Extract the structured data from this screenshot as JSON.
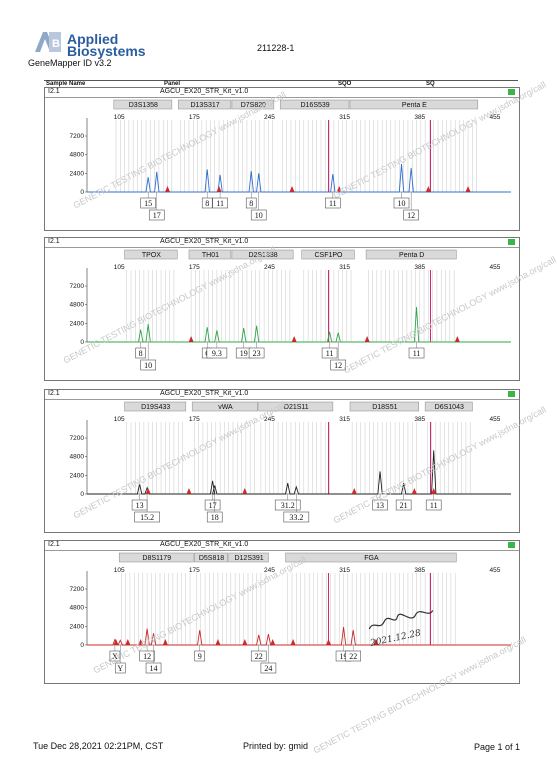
{
  "header": {
    "brand_line1": "Applied",
    "brand_line2": "Biosystems",
    "app_name": "GeneMapper ID v3.2",
    "code": "211228-1",
    "columns": [
      "Sample Name",
      "Panel",
      "SQO",
      "SQ"
    ]
  },
  "footer": {
    "date": "Tue Dec 28,2021 02:21PM, CST",
    "printed_by": "Printed by: gmid",
    "page": "Page 1 of 1"
  },
  "watermark": "GENETIC TESTING BIOTECHNOLOGY  www.jsdna.org/call",
  "signature": "2021.12.28",
  "colors": {
    "blue": "#2f6fcf",
    "green": "#2fa84a",
    "black": "#222222",
    "red": "#cc2a2a",
    "magenta": "#d6246e",
    "bin": "#c9c9c9",
    "locus": "#d9d9d9"
  },
  "chart_data": [
    {
      "type": "line",
      "sample": "I2.1",
      "panel": "AGCU_EX20_STR_Kit_v1.0",
      "dye": "blue",
      "x_ticks": [
        105,
        175,
        245,
        315,
        385,
        455
      ],
      "y_ticks": [
        0,
        2400,
        4800,
        7200
      ],
      "ylim": [
        0,
        9000
      ],
      "loci": [
        {
          "name": "D3S1358",
          "start": 100,
          "end": 155
        },
        {
          "name": "D13S317",
          "start": 160,
          "end": 210
        },
        {
          "name": "D7S820",
          "start": 210,
          "end": 250
        },
        {
          "name": "D16S539",
          "start": 255,
          "end": 320
        },
        {
          "name": "Penta E",
          "start": 320,
          "end": 440
        }
      ],
      "peaks": [
        {
          "x": 132,
          "h": 1900,
          "label": "15",
          "row": 1
        },
        {
          "x": 140,
          "h": 2600,
          "label": "17",
          "row": 2
        },
        {
          "x": 187,
          "h": 2900,
          "label": "8",
          "row": 1
        },
        {
          "x": 199,
          "h": 2200,
          "label": "11",
          "row": 1
        },
        {
          "x": 228,
          "h": 2700,
          "label": "8",
          "row": 1
        },
        {
          "x": 235,
          "h": 2400,
          "label": "10",
          "row": 2
        },
        {
          "x": 304,
          "h": 2300,
          "label": "11",
          "row": 1
        },
        {
          "x": 368,
          "h": 3600,
          "label": "10",
          "row": 1
        },
        {
          "x": 377,
          "h": 3100,
          "label": "12",
          "row": 2
        }
      ],
      "std_peaks": [
        150,
        198,
        266,
        310,
        393,
        430
      ]
    },
    {
      "type": "line",
      "sample": "I2.1",
      "panel": "AGCU_EX20_STR_Kit_v1.0",
      "dye": "green",
      "x_ticks": [
        105,
        175,
        245,
        315,
        385,
        455
      ],
      "y_ticks": [
        0,
        2400,
        4800,
        7200
      ],
      "ylim": [
        0,
        9000
      ],
      "loci": [
        {
          "name": "TPOX",
          "start": 110,
          "end": 160
        },
        {
          "name": "TH01",
          "start": 170,
          "end": 210
        },
        {
          "name": "D2S1338",
          "start": 210,
          "end": 268
        },
        {
          "name": "CSF1PO",
          "start": 275,
          "end": 325
        },
        {
          "name": "Penta D",
          "start": 335,
          "end": 420
        }
      ],
      "peaks": [
        {
          "x": 125,
          "h": 1600,
          "label": "8",
          "row": 1
        },
        {
          "x": 132,
          "h": 2300,
          "label": "10",
          "row": 2
        },
        {
          "x": 187,
          "h": 1900,
          "label": "6",
          "row": 1
        },
        {
          "x": 196,
          "h": 1500,
          "label": "9.3",
          "row": 1
        },
        {
          "x": 221,
          "h": 1800,
          "label": "19",
          "row": 1
        },
        {
          "x": 233,
          "h": 2100,
          "label": "23",
          "row": 1
        },
        {
          "x": 301,
          "h": 1300,
          "label": "11",
          "row": 1
        },
        {
          "x": 309,
          "h": 1200,
          "label": "12",
          "row": 2
        },
        {
          "x": 382,
          "h": 4500,
          "label": "11",
          "row": 1
        }
      ],
      "std_peaks": [
        172,
        268,
        336,
        420
      ]
    },
    {
      "type": "line",
      "sample": "I2.1",
      "panel": "AGCU_EX20_STR_Kit_v1.0",
      "dye": "black",
      "x_ticks": [
        105,
        175,
        245,
        315,
        385,
        455
      ],
      "y_ticks": [
        0,
        2400,
        4800,
        7200
      ],
      "ylim": [
        0,
        9000
      ],
      "loci": [
        {
          "name": "D19S433",
          "start": 110,
          "end": 168
        },
        {
          "name": "vWA",
          "start": 173,
          "end": 235
        },
        {
          "name": "D21S11",
          "start": 235,
          "end": 305
        },
        {
          "name": "D18S51",
          "start": 320,
          "end": 385
        },
        {
          "name": "D6S1043",
          "start": 390,
          "end": 435
        }
      ],
      "peaks": [
        {
          "x": 124,
          "h": 1300,
          "label": "13",
          "row": 1
        },
        {
          "x": 131,
          "h": 800,
          "label": "15.2",
          "row": 2
        },
        {
          "x": 192,
          "h": 1700,
          "label": "17",
          "row": 1
        },
        {
          "x": 194,
          "h": 1100,
          "label": "18",
          "row": 2
        },
        {
          "x": 262,
          "h": 1400,
          "label": "31.2",
          "row": 1
        },
        {
          "x": 270,
          "h": 900,
          "label": "33.2",
          "row": 2
        },
        {
          "x": 348,
          "h": 2900,
          "label": "13",
          "row": 1
        },
        {
          "x": 370,
          "h": 1400,
          "label": "21",
          "row": 1
        },
        {
          "x": 398,
          "h": 5600,
          "label": "11",
          "row": 1
        }
      ],
      "std_peaks": [
        132,
        170,
        222,
        324,
        380,
        398
      ]
    },
    {
      "type": "line",
      "sample": "I2.1",
      "panel": "AGCU_EX20_STR_Kit_v1.0",
      "dye": "red",
      "x_ticks": [
        105,
        175,
        245,
        315,
        385,
        455
      ],
      "y_ticks": [
        0,
        2400,
        4800,
        7200
      ],
      "ylim": [
        0,
        9000
      ],
      "loci": [
        {
          "name": "D8S1179",
          "start": 105,
          "end": 175
        },
        {
          "name": "D5S818",
          "start": 175,
          "end": 207
        },
        {
          "name": "D12S391",
          "start": 207,
          "end": 245
        },
        {
          "name": "FGA",
          "start": 260,
          "end": 420
        }
      ],
      "peaks": [
        {
          "x": 101,
          "h": 700,
          "label": "X",
          "row": 1
        },
        {
          "x": 106,
          "h": 600,
          "label": "Y",
          "row": 2
        },
        {
          "x": 131,
          "h": 2100,
          "label": "12",
          "row": 1
        },
        {
          "x": 137,
          "h": 1500,
          "label": "14",
          "row": 2
        },
        {
          "x": 180,
          "h": 1900,
          "label": "9",
          "row": 1
        },
        {
          "x": 235,
          "h": 1300,
          "label": "22",
          "row": 1
        },
        {
          "x": 244,
          "h": 1400,
          "label": "24",
          "row": 2
        },
        {
          "x": 314,
          "h": 2300,
          "label": "19",
          "row": 1
        },
        {
          "x": 323,
          "h": 1900,
          "label": "22",
          "row": 1
        }
      ],
      "std_peaks": [
        102,
        113,
        125,
        148,
        197,
        222,
        248,
        267,
        300,
        344
      ]
    }
  ]
}
